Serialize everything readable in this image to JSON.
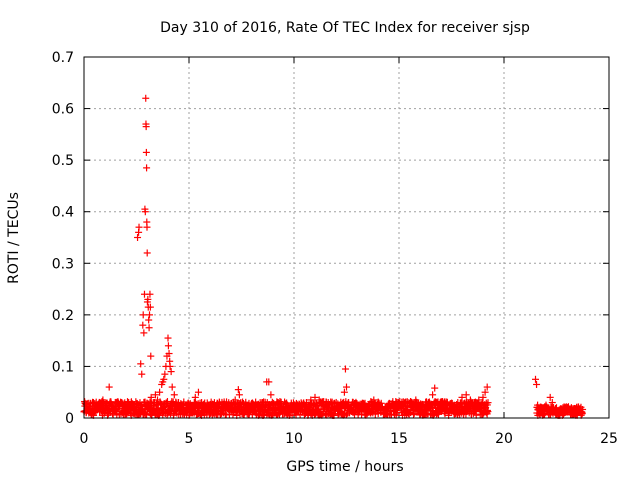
{
  "chart_data": {
    "type": "scatter",
    "title": "Day 310 of 2016, Rate Of TEC Index for receiver sjsp",
    "xlabel": "GPS time / hours",
    "ylabel": "ROTI / TECUs",
    "xlim": [
      0,
      25
    ],
    "ylim": [
      0,
      0.7
    ],
    "xticks": [
      "0",
      "5",
      "10",
      "15",
      "20",
      "25"
    ],
    "yticks": [
      "0",
      "0.1",
      "0.2",
      "0.3",
      "0.4",
      "0.5",
      "0.6",
      "0.7"
    ],
    "grid": true,
    "marker": "+",
    "color": "#ff0000",
    "series": [
      {
        "values": [
          {
            "x": 0.0,
            "y": 0.012
          },
          {
            "x": 0.15,
            "y": 0.018
          },
          {
            "x": 0.3,
            "y": 0.022
          },
          {
            "x": 0.45,
            "y": 0.03
          },
          {
            "x": 0.6,
            "y": 0.025
          },
          {
            "x": 0.75,
            "y": 0.02
          },
          {
            "x": 0.9,
            "y": 0.035
          },
          {
            "x": 1.05,
            "y": 0.028
          },
          {
            "x": 1.2,
            "y": 0.06
          },
          {
            "x": 1.35,
            "y": 0.022
          },
          {
            "x": 1.5,
            "y": 0.018
          },
          {
            "x": 1.65,
            "y": 0.025
          },
          {
            "x": 1.8,
            "y": 0.03
          },
          {
            "x": 1.95,
            "y": 0.02
          },
          {
            "x": 2.1,
            "y": 0.024
          },
          {
            "x": 2.25,
            "y": 0.03
          },
          {
            "x": 2.4,
            "y": 0.026
          },
          {
            "x": 2.55,
            "y": 0.35
          },
          {
            "x": 2.6,
            "y": 0.36
          },
          {
            "x": 2.62,
            "y": 0.37
          },
          {
            "x": 2.7,
            "y": 0.105
          },
          {
            "x": 2.75,
            "y": 0.085
          },
          {
            "x": 2.8,
            "y": 0.18
          },
          {
            "x": 2.82,
            "y": 0.2
          },
          {
            "x": 2.85,
            "y": 0.165
          },
          {
            "x": 2.88,
            "y": 0.24
          },
          {
            "x": 2.9,
            "y": 0.405
          },
          {
            "x": 2.92,
            "y": 0.4
          },
          {
            "x": 2.94,
            "y": 0.62
          },
          {
            "x": 2.95,
            "y": 0.57
          },
          {
            "x": 2.96,
            "y": 0.565
          },
          {
            "x": 2.97,
            "y": 0.515
          },
          {
            "x": 2.98,
            "y": 0.485
          },
          {
            "x": 2.99,
            "y": 0.38
          },
          {
            "x": 3.0,
            "y": 0.37
          },
          {
            "x": 3.01,
            "y": 0.32
          },
          {
            "x": 3.02,
            "y": 0.225
          },
          {
            "x": 3.04,
            "y": 0.23
          },
          {
            "x": 3.06,
            "y": 0.215
          },
          {
            "x": 3.08,
            "y": 0.19
          },
          {
            "x": 3.1,
            "y": 0.175
          },
          {
            "x": 3.12,
            "y": 0.2
          },
          {
            "x": 3.14,
            "y": 0.24
          },
          {
            "x": 3.16,
            "y": 0.215
          },
          {
            "x": 3.18,
            "y": 0.12
          },
          {
            "x": 3.2,
            "y": 0.04
          },
          {
            "x": 3.3,
            "y": 0.03
          },
          {
            "x": 3.4,
            "y": 0.045
          },
          {
            "x": 3.5,
            "y": 0.035
          },
          {
            "x": 3.6,
            "y": 0.05
          },
          {
            "x": 3.7,
            "y": 0.065
          },
          {
            "x": 3.75,
            "y": 0.07
          },
          {
            "x": 3.8,
            "y": 0.075
          },
          {
            "x": 3.85,
            "y": 0.085
          },
          {
            "x": 3.9,
            "y": 0.1
          },
          {
            "x": 3.95,
            "y": 0.12
          },
          {
            "x": 4.0,
            "y": 0.155
          },
          {
            "x": 4.02,
            "y": 0.14
          },
          {
            "x": 4.05,
            "y": 0.125
          },
          {
            "x": 4.08,
            "y": 0.11
          },
          {
            "x": 4.1,
            "y": 0.1
          },
          {
            "x": 4.15,
            "y": 0.09
          },
          {
            "x": 4.2,
            "y": 0.06
          },
          {
            "x": 4.3,
            "y": 0.045
          },
          {
            "x": 4.5,
            "y": 0.03
          },
          {
            "x": 4.7,
            "y": 0.025
          },
          {
            "x": 4.9,
            "y": 0.02
          },
          {
            "x": 5.1,
            "y": 0.022
          },
          {
            "x": 5.3,
            "y": 0.04
          },
          {
            "x": 5.45,
            "y": 0.05
          },
          {
            "x": 5.6,
            "y": 0.03
          },
          {
            "x": 5.8,
            "y": 0.022
          },
          {
            "x": 6.0,
            "y": 0.02
          },
          {
            "x": 6.2,
            "y": 0.025
          },
          {
            "x": 6.4,
            "y": 0.018
          },
          {
            "x": 6.6,
            "y": 0.02
          },
          {
            "x": 6.8,
            "y": 0.022
          },
          {
            "x": 7.0,
            "y": 0.025
          },
          {
            "x": 7.2,
            "y": 0.035
          },
          {
            "x": 7.35,
            "y": 0.055
          },
          {
            "x": 7.4,
            "y": 0.045
          },
          {
            "x": 7.5,
            "y": 0.025
          },
          {
            "x": 7.7,
            "y": 0.02
          },
          {
            "x": 7.9,
            "y": 0.022
          },
          {
            "x": 8.1,
            "y": 0.02
          },
          {
            "x": 8.3,
            "y": 0.025
          },
          {
            "x": 8.5,
            "y": 0.03
          },
          {
            "x": 8.7,
            "y": 0.07
          },
          {
            "x": 8.8,
            "y": 0.07
          },
          {
            "x": 8.9,
            "y": 0.045
          },
          {
            "x": 9.0,
            "y": 0.025
          },
          {
            "x": 9.2,
            "y": 0.02
          },
          {
            "x": 9.4,
            "y": 0.022
          },
          {
            "x": 9.6,
            "y": 0.018
          },
          {
            "x": 9.8,
            "y": 0.02
          },
          {
            "x": 10.0,
            "y": 0.022
          },
          {
            "x": 10.2,
            "y": 0.02
          },
          {
            "x": 10.4,
            "y": 0.025
          },
          {
            "x": 10.6,
            "y": 0.03
          },
          {
            "x": 10.8,
            "y": 0.035
          },
          {
            "x": 11.0,
            "y": 0.04
          },
          {
            "x": 11.2,
            "y": 0.035
          },
          {
            "x": 11.4,
            "y": 0.025
          },
          {
            "x": 11.6,
            "y": 0.02
          },
          {
            "x": 11.8,
            "y": 0.018
          },
          {
            "x": 12.0,
            "y": 0.02
          },
          {
            "x": 12.2,
            "y": 0.025
          },
          {
            "x": 12.4,
            "y": 0.05
          },
          {
            "x": 12.45,
            "y": 0.095
          },
          {
            "x": 12.5,
            "y": 0.06
          },
          {
            "x": 12.6,
            "y": 0.03
          },
          {
            "x": 12.8,
            "y": 0.015
          },
          {
            "x": 13.0,
            "y": 0.012
          },
          {
            "x": 13.2,
            "y": 0.015
          },
          {
            "x": 13.4,
            "y": 0.012
          },
          {
            "x": 13.6,
            "y": 0.025
          },
          {
            "x": 13.8,
            "y": 0.035
          },
          {
            "x": 14.0,
            "y": 0.03
          },
          {
            "x": 14.2,
            "y": 0.02
          },
          {
            "x": 14.4,
            "y": 0.018
          },
          {
            "x": 14.6,
            "y": 0.02
          },
          {
            "x": 14.8,
            "y": 0.025
          },
          {
            "x": 15.0,
            "y": 0.02
          },
          {
            "x": 15.2,
            "y": 0.018
          },
          {
            "x": 15.4,
            "y": 0.022
          },
          {
            "x": 15.6,
            "y": 0.02
          },
          {
            "x": 15.8,
            "y": 0.035
          },
          {
            "x": 16.0,
            "y": 0.025
          },
          {
            "x": 16.2,
            "y": 0.02
          },
          {
            "x": 16.4,
            "y": 0.03
          },
          {
            "x": 16.6,
            "y": 0.045
          },
          {
            "x": 16.7,
            "y": 0.058
          },
          {
            "x": 16.8,
            "y": 0.03
          },
          {
            "x": 17.0,
            "y": 0.022
          },
          {
            "x": 17.2,
            "y": 0.02
          },
          {
            "x": 17.4,
            "y": 0.025
          },
          {
            "x": 17.6,
            "y": 0.022
          },
          {
            "x": 17.8,
            "y": 0.03
          },
          {
            "x": 18.0,
            "y": 0.04
          },
          {
            "x": 18.2,
            "y": 0.045
          },
          {
            "x": 18.4,
            "y": 0.035
          },
          {
            "x": 18.6,
            "y": 0.03
          },
          {
            "x": 18.8,
            "y": 0.035
          },
          {
            "x": 19.0,
            "y": 0.04
          },
          {
            "x": 19.1,
            "y": 0.05
          },
          {
            "x": 19.2,
            "y": 0.06
          },
          {
            "x": 21.5,
            "y": 0.075
          },
          {
            "x": 21.55,
            "y": 0.065
          },
          {
            "x": 21.6,
            "y": 0.025
          },
          {
            "x": 21.8,
            "y": 0.02
          },
          {
            "x": 22.0,
            "y": 0.025
          },
          {
            "x": 22.2,
            "y": 0.04
          },
          {
            "x": 22.3,
            "y": 0.03
          },
          {
            "x": 22.5,
            "y": 0.02
          },
          {
            "x": 22.7,
            "y": 0.018
          },
          {
            "x": 22.9,
            "y": 0.02
          },
          {
            "x": 23.1,
            "y": 0.015
          },
          {
            "x": 23.3,
            "y": 0.018
          },
          {
            "x": 23.5,
            "y": 0.015
          },
          {
            "x": 23.7,
            "y": 0.012
          }
        ],
        "dense_bands": [
          {
            "x_from": 0.0,
            "x_to": 19.25,
            "y_from": 0.005,
            "y_to": 0.032
          },
          {
            "x_from": 21.55,
            "x_to": 23.75,
            "y_from": 0.005,
            "y_to": 0.022
          }
        ]
      }
    ]
  }
}
